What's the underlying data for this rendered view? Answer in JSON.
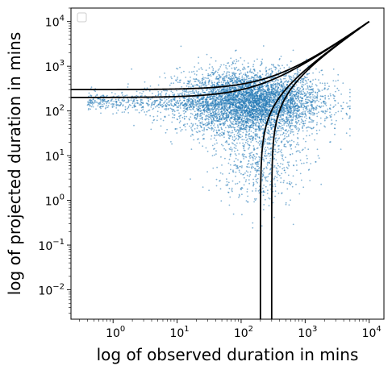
{
  "chart_data": {
    "type": "scatter",
    "title": "",
    "xlabel": "log of observed duration in mins",
    "ylabel": "log of projected duration in mins",
    "x_scale": "log",
    "y_scale": "log",
    "xlim": [
      0.22,
      17000
    ],
    "ylim": [
      0.0022,
      20000
    ],
    "x_ticks": [
      {
        "value": 1,
        "base": "10",
        "exp": "0"
      },
      {
        "value": 10,
        "base": "10",
        "exp": "1"
      },
      {
        "value": 100,
        "base": "10",
        "exp": "2"
      },
      {
        "value": 1000,
        "base": "10",
        "exp": "3"
      },
      {
        "value": 10000,
        "base": "10",
        "exp": "4"
      }
    ],
    "y_ticks": [
      {
        "value": 0.01,
        "base": "10",
        "exp": "−2"
      },
      {
        "value": 0.1,
        "base": "10",
        "exp": "−1"
      },
      {
        "value": 1,
        "base": "10",
        "exp": "0"
      },
      {
        "value": 10,
        "base": "10",
        "exp": "1"
      },
      {
        "value": 100,
        "base": "10",
        "exp": "2"
      },
      {
        "value": 1000,
        "base": "10",
        "exp": "3"
      },
      {
        "value": 10000,
        "base": "10",
        "exp": "4"
      }
    ],
    "grid": false,
    "legend": {
      "placement": "top-left",
      "entries": []
    },
    "scatter": {
      "color": "#1f77b4",
      "opacity": 0.55,
      "approx_center": [
        150,
        160
      ]
    },
    "curves": [
      {
        "type": "horizontal-asymptote",
        "asymptote_y": 300,
        "end": [
          10000,
          10000
        ]
      },
      {
        "type": "horizontal-asymptote",
        "asymptote_y": 200,
        "end": [
          10000,
          10000
        ]
      },
      {
        "type": "vertical-asymptote",
        "asymptote_x": 200,
        "end": [
          10000,
          10000
        ]
      },
      {
        "type": "vertical-asymptote",
        "asymptote_x": 300,
        "end": [
          10000,
          10000
        ]
      }
    ],
    "curve_color": "#000000"
  }
}
